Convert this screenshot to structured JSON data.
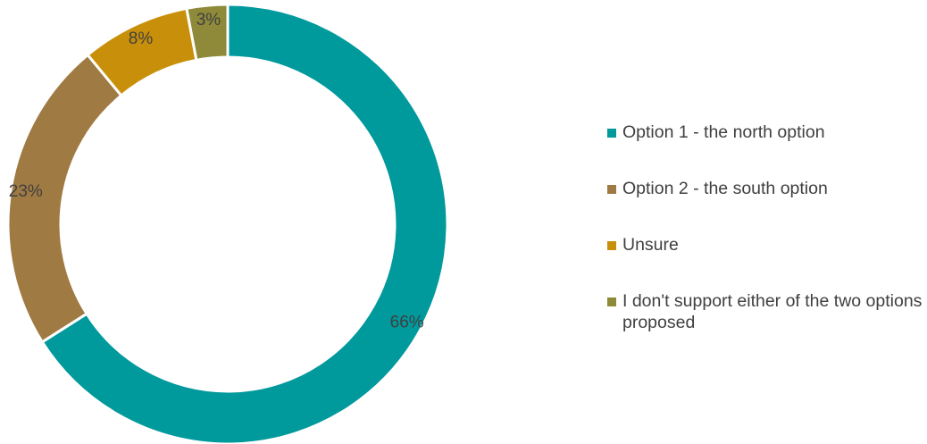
{
  "chart_data": {
    "type": "pie",
    "variant": "donut",
    "title": "",
    "legend_position": "right",
    "series": [
      {
        "name": "Option 1 - the north option",
        "value": 66,
        "label": "66%",
        "color": "#00999C"
      },
      {
        "name": "Option 2 - the south option",
        "value": 23,
        "label": "23%",
        "color": "#A07A43"
      },
      {
        "name": "Unsure",
        "value": 8,
        "label": "8%",
        "color": "#C8900A"
      },
      {
        "name": "I don't support either of the two options proposed",
        "value": 3,
        "label": "3%",
        "color": "#8E8A3A"
      }
    ]
  }
}
